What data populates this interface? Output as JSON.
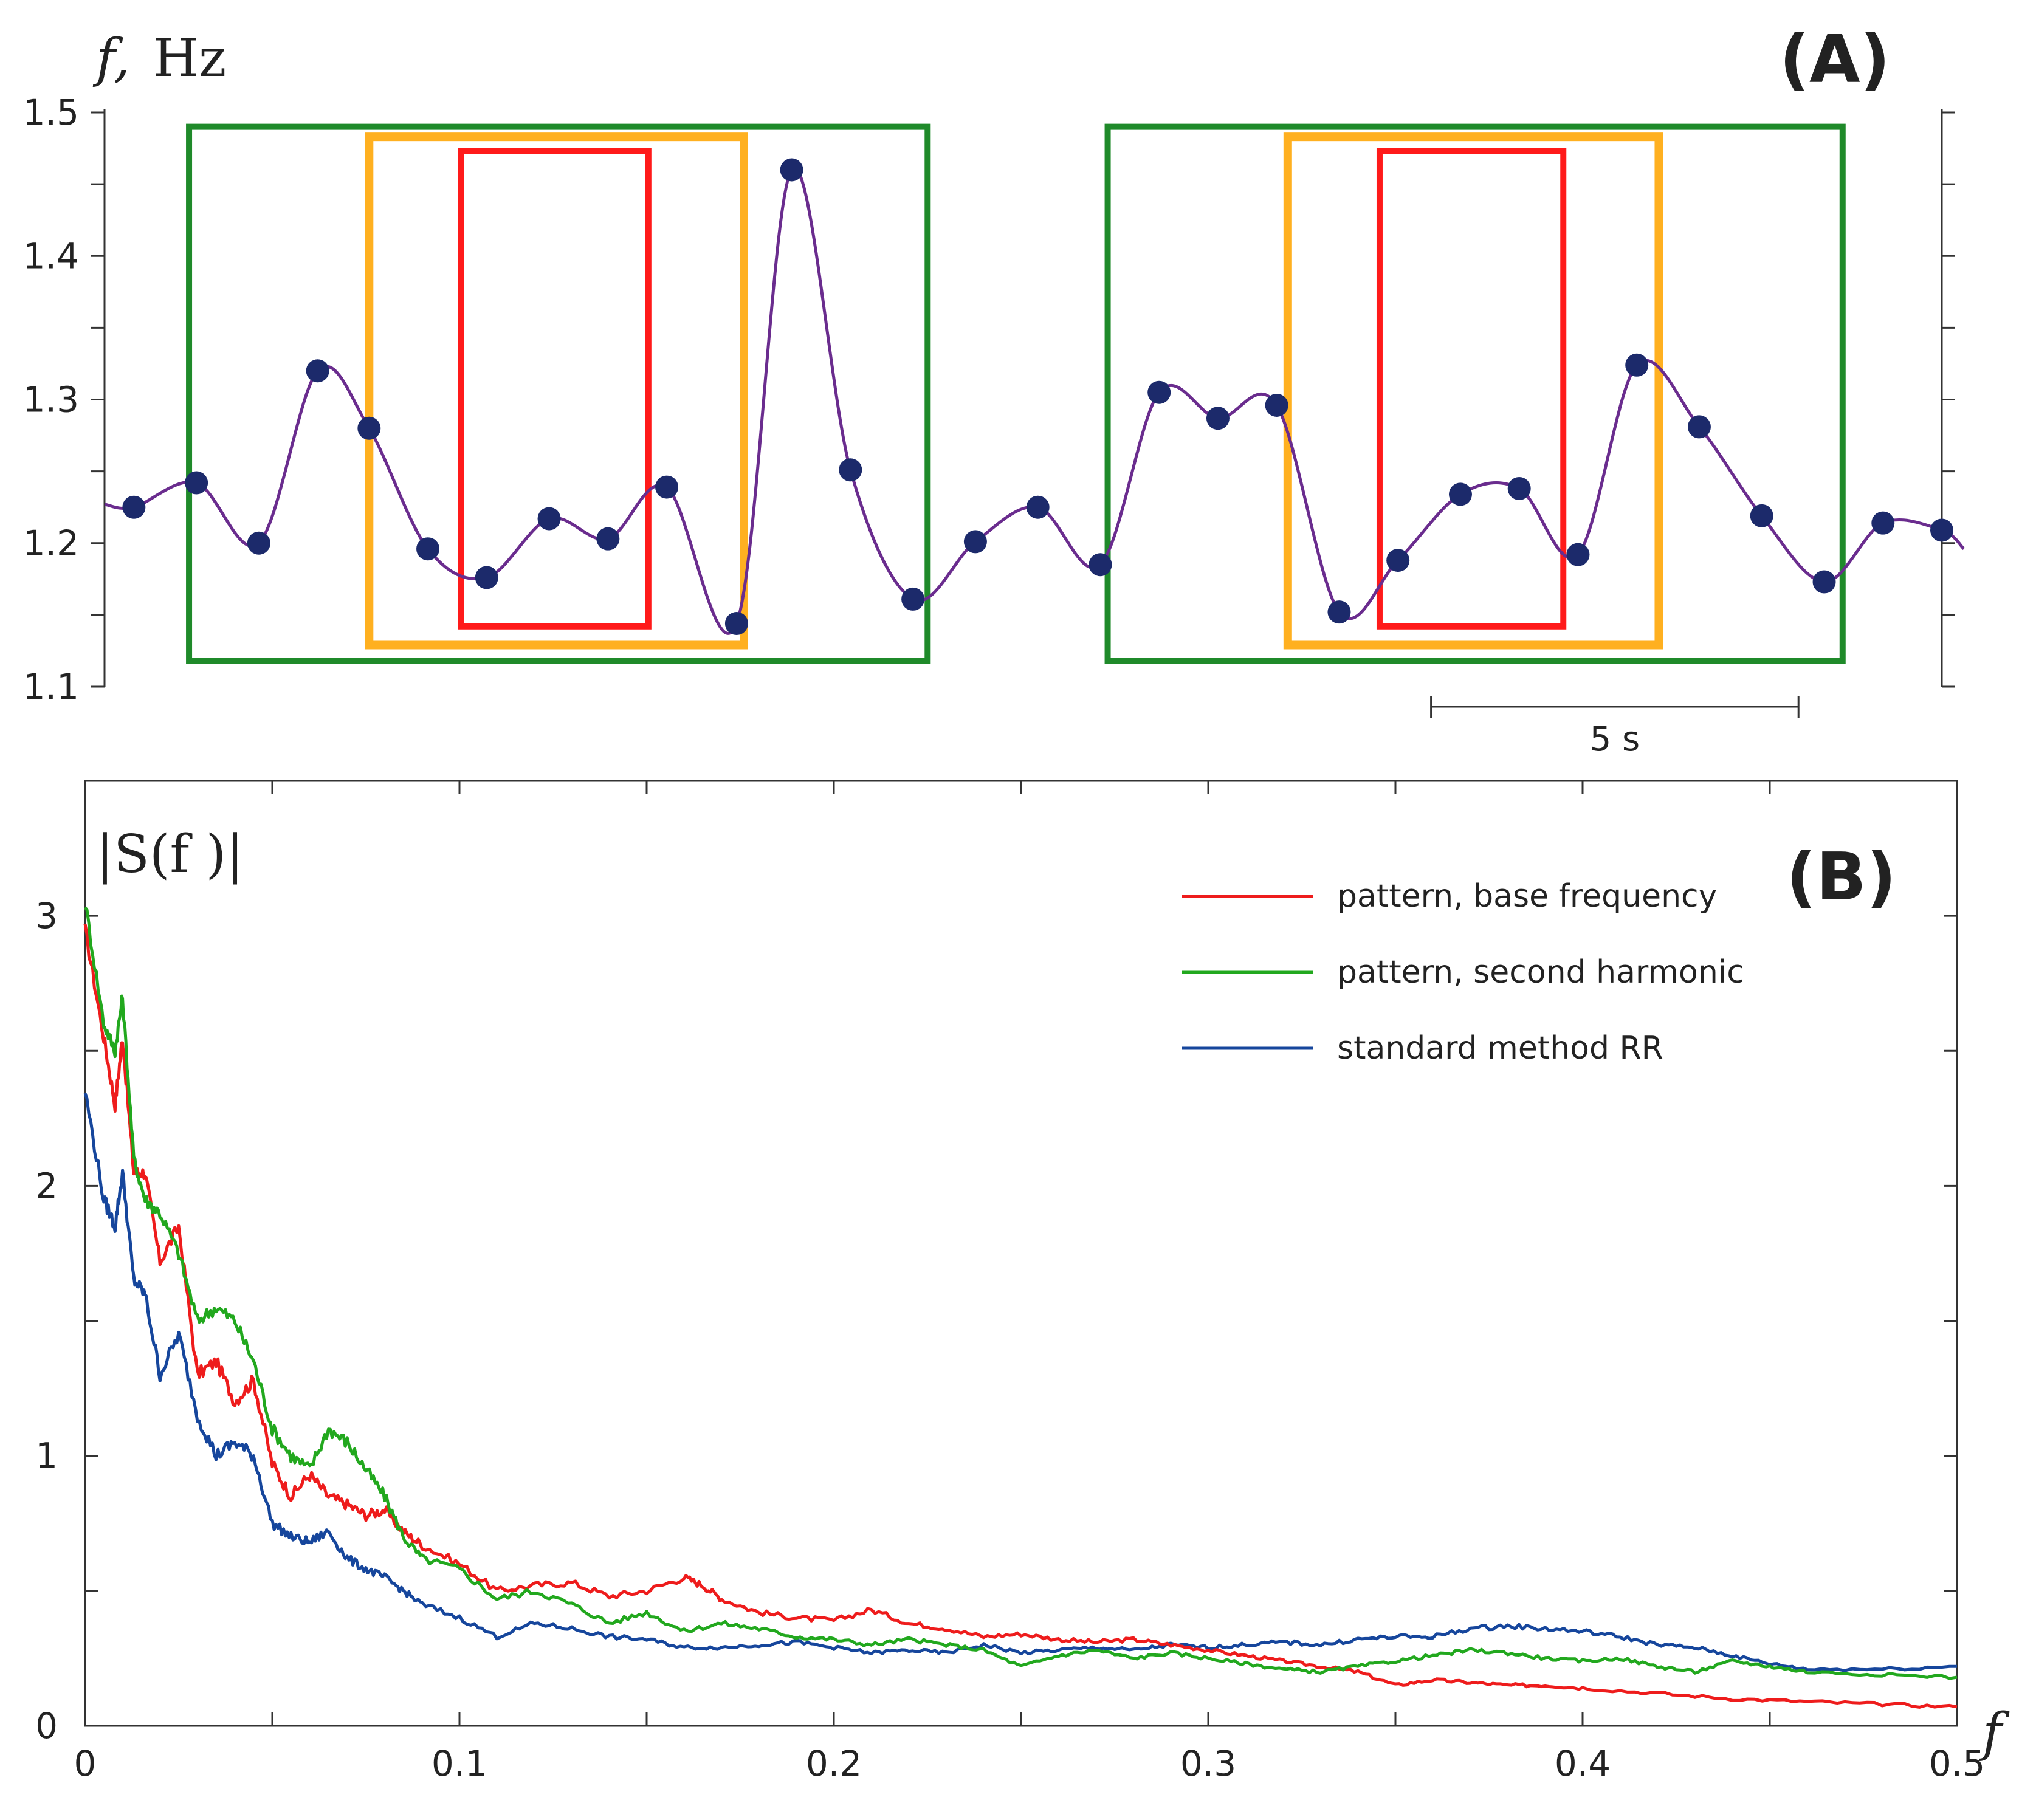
{
  "chart_data": [
    {
      "panel": "(A)",
      "type": "line",
      "ylabel_var": "f,",
      "ylabel_unit": "Hz",
      "ylim": [
        1.1,
        1.5
      ],
      "yticks": [
        "1.1",
        "1.2",
        "1.3",
        "1.4",
        "1.5"
      ],
      "scale_bar_label": "5 s",
      "scale_bar_seconds": 5,
      "series_color": "#6a2c8e",
      "marker_color": "#1c2a6b",
      "xlim": [
        0,
        25
      ],
      "points": [
        {
          "t": 0.4,
          "f": 1.225
        },
        {
          "t": 1.25,
          "f": 1.242
        },
        {
          "t": 2.1,
          "f": 1.2
        },
        {
          "t": 2.9,
          "f": 1.32
        },
        {
          "t": 3.6,
          "f": 1.28
        },
        {
          "t": 4.4,
          "f": 1.196
        },
        {
          "t": 5.2,
          "f": 1.176
        },
        {
          "t": 6.05,
          "f": 1.217
        },
        {
          "t": 6.85,
          "f": 1.203
        },
        {
          "t": 7.65,
          "f": 1.239
        },
        {
          "t": 8.6,
          "f": 1.144
        },
        {
          "t": 9.35,
          "f": 1.46
        },
        {
          "t": 10.15,
          "f": 1.251
        },
        {
          "t": 11.0,
          "f": 1.161
        },
        {
          "t": 11.85,
          "f": 1.201
        },
        {
          "t": 12.7,
          "f": 1.225
        },
        {
          "t": 13.55,
          "f": 1.185
        },
        {
          "t": 14.35,
          "f": 1.305
        },
        {
          "t": 15.15,
          "f": 1.287
        },
        {
          "t": 15.95,
          "f": 1.296
        },
        {
          "t": 16.8,
          "f": 1.152
        },
        {
          "t": 17.6,
          "f": 1.188
        },
        {
          "t": 18.45,
          "f": 1.234
        },
        {
          "t": 19.25,
          "f": 1.238
        },
        {
          "t": 20.05,
          "f": 1.192
        },
        {
          "t": 20.85,
          "f": 1.324
        },
        {
          "t": 21.7,
          "f": 1.281
        },
        {
          "t": 22.55,
          "f": 1.219
        },
        {
          "t": 23.4,
          "f": 1.173
        },
        {
          "t": 24.2,
          "f": 1.214
        },
        {
          "t": 25.0,
          "f": 1.209
        }
      ],
      "boxes": [
        {
          "color": "#1f8a2a",
          "t0": 1.15,
          "t1": 11.2,
          "f0": 1.118,
          "f1": 1.49
        },
        {
          "color": "#ffb020",
          "t0": 3.6,
          "t1": 8.7,
          "f0": 1.129,
          "f1": 1.483
        },
        {
          "color": "#ff1a1a",
          "t0": 4.85,
          "t1": 7.4,
          "f0": 1.142,
          "f1": 1.473
        },
        {
          "color": "#1f8a2a",
          "t0": 13.65,
          "t1": 23.65,
          "f0": 1.118,
          "f1": 1.49
        },
        {
          "color": "#ffb020",
          "t0": 16.1,
          "t1": 21.15,
          "f0": 1.129,
          "f1": 1.483
        },
        {
          "color": "#ff1a1a",
          "t0": 17.35,
          "t1": 19.85,
          "f0": 1.142,
          "f1": 1.473
        }
      ]
    },
    {
      "panel": "(B)",
      "type": "line",
      "ylabel": "|S(f )|",
      "xlabel": "f",
      "xlim": [
        0,
        0.5
      ],
      "ylim": [
        0,
        3.5
      ],
      "xticks": [
        "0",
        "0.1",
        "0.2",
        "0.3",
        "0.4",
        "0.5"
      ],
      "yticks": [
        "0",
        "1",
        "2",
        "3"
      ],
      "legend_position": "top-right",
      "series": [
        {
          "name": "pattern, base frequency",
          "color": "#ee1c1c",
          "x": [
            0.0,
            0.005,
            0.008,
            0.01,
            0.013,
            0.016,
            0.02,
            0.025,
            0.03,
            0.035,
            0.04,
            0.045,
            0.05,
            0.055,
            0.06,
            0.065,
            0.07,
            0.075,
            0.08,
            0.085,
            0.09,
            0.1,
            0.11,
            0.12,
            0.13,
            0.14,
            0.15,
            0.16,
            0.165,
            0.17,
            0.18,
            0.19,
            0.2,
            0.21,
            0.22,
            0.23,
            0.24,
            0.25,
            0.26,
            0.27,
            0.28,
            0.29,
            0.3,
            0.31,
            0.32,
            0.33,
            0.34,
            0.35,
            0.36,
            0.37,
            0.38,
            0.39,
            0.4,
            0.42,
            0.44,
            0.46,
            0.48,
            0.5
          ],
          "y": [
            2.95,
            2.55,
            2.3,
            2.55,
            2.05,
            2.05,
            1.72,
            1.85,
            1.3,
            1.35,
            1.2,
            1.28,
            0.97,
            0.85,
            0.93,
            0.85,
            0.82,
            0.78,
            0.8,
            0.72,
            0.67,
            0.6,
            0.5,
            0.52,
            0.53,
            0.48,
            0.5,
            0.55,
            0.52,
            0.47,
            0.42,
            0.4,
            0.39,
            0.43,
            0.38,
            0.36,
            0.33,
            0.34,
            0.32,
            0.31,
            0.32,
            0.3,
            0.28,
            0.26,
            0.24,
            0.22,
            0.2,
            0.15,
            0.17,
            0.16,
            0.15,
            0.15,
            0.14,
            0.12,
            0.1,
            0.09,
            0.08,
            0.07
          ]
        },
        {
          "name": "pattern, second harmonic",
          "color": "#22a81e",
          "x": [
            0.0,
            0.005,
            0.008,
            0.01,
            0.013,
            0.016,
            0.02,
            0.025,
            0.03,
            0.035,
            0.04,
            0.045,
            0.05,
            0.055,
            0.06,
            0.065,
            0.07,
            0.075,
            0.08,
            0.085,
            0.09,
            0.1,
            0.11,
            0.12,
            0.13,
            0.14,
            0.15,
            0.16,
            0.17,
            0.18,
            0.19,
            0.2,
            0.21,
            0.22,
            0.23,
            0.24,
            0.25,
            0.26,
            0.27,
            0.28,
            0.29,
            0.3,
            0.31,
            0.32,
            0.33,
            0.34,
            0.35,
            0.36,
            0.37,
            0.38,
            0.39,
            0.4,
            0.41,
            0.42,
            0.43,
            0.44,
            0.45,
            0.46,
            0.48,
            0.5
          ],
          "y": [
            3.05,
            2.6,
            2.5,
            2.7,
            2.1,
            1.95,
            1.9,
            1.75,
            1.5,
            1.55,
            1.5,
            1.35,
            1.1,
            1.0,
            0.95,
            1.1,
            1.05,
            0.95,
            0.85,
            0.7,
            0.62,
            0.58,
            0.47,
            0.5,
            0.45,
            0.38,
            0.42,
            0.35,
            0.38,
            0.36,
            0.33,
            0.32,
            0.3,
            0.32,
            0.3,
            0.28,
            0.22,
            0.26,
            0.28,
            0.25,
            0.27,
            0.25,
            0.23,
            0.21,
            0.2,
            0.22,
            0.24,
            0.26,
            0.28,
            0.27,
            0.25,
            0.24,
            0.25,
            0.22,
            0.2,
            0.24,
            0.22,
            0.2,
            0.19,
            0.18
          ]
        },
        {
          "name": "standard method RR",
          "color": "#16469c",
          "x": [
            0.0,
            0.005,
            0.008,
            0.01,
            0.013,
            0.016,
            0.02,
            0.025,
            0.03,
            0.035,
            0.04,
            0.045,
            0.05,
            0.055,
            0.06,
            0.065,
            0.07,
            0.075,
            0.08,
            0.085,
            0.09,
            0.1,
            0.11,
            0.12,
            0.13,
            0.14,
            0.15,
            0.16,
            0.17,
            0.18,
            0.19,
            0.2,
            0.21,
            0.22,
            0.23,
            0.24,
            0.25,
            0.26,
            0.27,
            0.28,
            0.29,
            0.3,
            0.31,
            0.32,
            0.33,
            0.34,
            0.35,
            0.36,
            0.37,
            0.38,
            0.39,
            0.4,
            0.41,
            0.42,
            0.43,
            0.44,
            0.45,
            0.46,
            0.48,
            0.5
          ],
          "y": [
            2.35,
            1.95,
            1.85,
            2.05,
            1.65,
            1.6,
            1.3,
            1.45,
            1.15,
            1.0,
            1.05,
            1.0,
            0.75,
            0.7,
            0.68,
            0.72,
            0.62,
            0.58,
            0.55,
            0.5,
            0.45,
            0.4,
            0.33,
            0.38,
            0.36,
            0.33,
            0.32,
            0.29,
            0.29,
            0.3,
            0.31,
            0.29,
            0.27,
            0.28,
            0.27,
            0.3,
            0.27,
            0.28,
            0.29,
            0.28,
            0.3,
            0.29,
            0.3,
            0.31,
            0.3,
            0.32,
            0.33,
            0.33,
            0.36,
            0.37,
            0.36,
            0.35,
            0.33,
            0.3,
            0.29,
            0.26,
            0.23,
            0.21,
            0.21,
            0.22
          ]
        }
      ]
    }
  ]
}
